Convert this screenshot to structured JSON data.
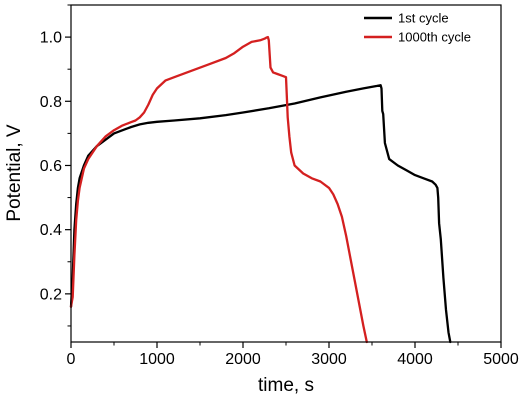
{
  "chart_data": {
    "type": "line",
    "title": "",
    "xlabel": "time, s",
    "ylabel": "Potential, V",
    "xlim": [
      0,
      5000
    ],
    "ylim": [
      0.05,
      1.1
    ],
    "xticks": [
      0,
      1000,
      2000,
      3000,
      4000,
      5000
    ],
    "yticks": [
      0.2,
      0.4,
      0.6,
      0.8,
      1.0
    ],
    "xtick_labels": [
      "0",
      "1000",
      "2000",
      "3000",
      "4000",
      "5000"
    ],
    "ytick_labels": [
      "0.2",
      "0.4",
      "0.6",
      "0.8",
      "1.0"
    ],
    "grid": false,
    "legend_position": "top-right",
    "series": [
      {
        "name": "1st cycle",
        "color": "#000000",
        "x": [
          0,
          20,
          40,
          60,
          80,
          100,
          150,
          200,
          300,
          400,
          500,
          600,
          700,
          800,
          900,
          1000,
          1200,
          1500,
          1800,
          2000,
          2300,
          2600,
          2900,
          3200,
          3400,
          3560,
          3600,
          3610,
          3620,
          3630,
          3650,
          3700,
          3800,
          3900,
          4000,
          4100,
          4200,
          4240,
          4260,
          4270,
          4280,
          4300,
          4330,
          4360,
          4390,
          4410
        ],
        "y": [
          0.16,
          0.25,
          0.4,
          0.48,
          0.53,
          0.56,
          0.6,
          0.63,
          0.66,
          0.68,
          0.7,
          0.71,
          0.72,
          0.728,
          0.733,
          0.736,
          0.74,
          0.747,
          0.757,
          0.765,
          0.778,
          0.793,
          0.812,
          0.83,
          0.84,
          0.848,
          0.85,
          0.84,
          0.77,
          0.76,
          0.67,
          0.62,
          0.6,
          0.585,
          0.57,
          0.56,
          0.55,
          0.54,
          0.53,
          0.5,
          0.42,
          0.37,
          0.25,
          0.15,
          0.08,
          0.05
        ]
      },
      {
        "name": "1000th cycle",
        "color": "#d42020",
        "x": [
          0,
          20,
          40,
          60,
          80,
          100,
          150,
          200,
          300,
          400,
          500,
          600,
          700,
          750,
          800,
          850,
          900,
          950,
          1000,
          1100,
          1200,
          1400,
          1600,
          1800,
          1900,
          2000,
          2100,
          2200,
          2250,
          2270,
          2290,
          2300,
          2320,
          2350,
          2400,
          2450,
          2500,
          2510,
          2520,
          2540,
          2560,
          2600,
          2700,
          2800,
          2900,
          3000,
          3050,
          3100,
          3150,
          3200,
          3250,
          3300,
          3350,
          3400,
          3440
        ],
        "y": [
          0.16,
          0.19,
          0.32,
          0.43,
          0.49,
          0.53,
          0.59,
          0.62,
          0.66,
          0.69,
          0.71,
          0.725,
          0.735,
          0.74,
          0.75,
          0.765,
          0.79,
          0.82,
          0.84,
          0.865,
          0.875,
          0.895,
          0.915,
          0.935,
          0.95,
          0.97,
          0.985,
          0.99,
          0.995,
          0.998,
          1.0,
          0.99,
          0.905,
          0.89,
          0.885,
          0.88,
          0.875,
          0.81,
          0.75,
          0.69,
          0.64,
          0.6,
          0.575,
          0.56,
          0.55,
          0.53,
          0.51,
          0.48,
          0.44,
          0.38,
          0.31,
          0.24,
          0.17,
          0.1,
          0.05
        ]
      }
    ]
  }
}
